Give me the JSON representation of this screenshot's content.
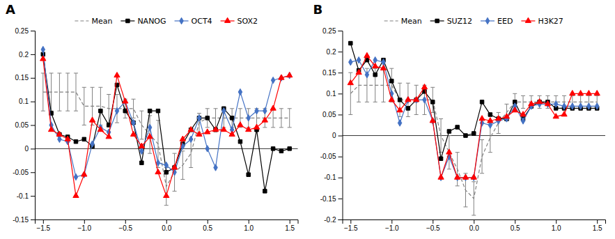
{
  "chart_data": [
    {
      "type": "line",
      "title": "A",
      "x": [
        -1.5,
        -1.4,
        -1.3,
        -1.2,
        -1.1,
        -1.0,
        -0.9,
        -0.8,
        -0.7,
        -0.6,
        -0.5,
        -0.4,
        -0.3,
        -0.2,
        -0.1,
        0.0,
        0.1,
        0.2,
        0.3,
        0.4,
        0.5,
        0.6,
        0.7,
        0.8,
        0.9,
        1.0,
        1.1,
        1.2,
        1.3,
        1.4,
        1.5
      ],
      "series": [
        {
          "name": "Mean",
          "color": "#808080",
          "line_style": "dashed",
          "marker": "none",
          "values": [
            0.12,
            0.12,
            0.12,
            0.12,
            0.12,
            0.09,
            0.09,
            0.09,
            0.085,
            0.085,
            0.085,
            0.085,
            0.05,
            0.03,
            0.01,
            -0.08,
            -0.05,
            -0.035,
            -0.01,
            0.055,
            0.065,
            0.065,
            0.065,
            0.065,
            0.065,
            0.065,
            0.065,
            0.065,
            0.065,
            0.065,
            0.065
          ],
          "errors": [
            0.04,
            0.04,
            0.04,
            0.04,
            0.04,
            0.04,
            0.04,
            0.04,
            0.03,
            0.03,
            0.02,
            0.02,
            0.03,
            0.04,
            0.05,
            0.04,
            0.04,
            0.03,
            0.03,
            0.02,
            0.02,
            0.02,
            0.02,
            0.02,
            0.02,
            0.02,
            0.02,
            0.02,
            0.02,
            0.02,
            0.02
          ]
        },
        {
          "name": "NANOG",
          "color": "#000000",
          "line_style": "solid",
          "marker": "square",
          "values": [
            0.2,
            0.075,
            0.03,
            0.025,
            0.015,
            0.02,
            0.005,
            0.08,
            0.05,
            0.135,
            0.08,
            0.055,
            -0.03,
            0.08,
            0.08,
            -0.05,
            -0.04,
            0.01,
            0.04,
            0.065,
            0.065,
            0.04,
            0.085,
            0.065,
            0.015,
            -0.055,
            0.04,
            -0.09,
            0.0,
            -0.005,
            0.0
          ]
        },
        {
          "name": "OCT4",
          "color": "#4472C4",
          "line_style": "solid",
          "marker": "diamond",
          "values": [
            0.21,
            0.05,
            0.02,
            0.015,
            -0.06,
            -0.055,
            0.01,
            0.045,
            0.035,
            0.08,
            0.1,
            0.055,
            -0.005,
            0.045,
            -0.03,
            -0.035,
            -0.05,
            0.005,
            0.02,
            0.065,
            0.0,
            -0.04,
            0.08,
            0.04,
            0.12,
            0.065,
            0.08,
            0.08,
            0.145,
            0.15,
            0.155
          ]
        },
        {
          "name": "SOX2",
          "color": "#FF0000",
          "line_style": "solid",
          "marker": "triangle",
          "values": [
            0.19,
            0.04,
            0.03,
            0.02,
            -0.1,
            -0.055,
            0.06,
            0.04,
            0.025,
            0.155,
            0.1,
            0.03,
            0.005,
            0.025,
            -0.05,
            -0.1,
            -0.04,
            0.02,
            0.04,
            0.03,
            0.035,
            0.04,
            0.04,
            0.03,
            0.05,
            0.04,
            0.045,
            0.06,
            0.085,
            0.15,
            0.155
          ]
        }
      ],
      "xlim": [
        -1.6,
        1.6
      ],
      "ylim": [
        -0.15,
        0.25
      ],
      "xticks": [
        {
          "value": -1.5,
          "label": "−1.5"
        },
        {
          "value": -1.0,
          "label": "−1.0"
        },
        {
          "value": -0.5,
          "label": "−0.5"
        },
        {
          "value": 0.0,
          "label": "0.0"
        },
        {
          "value": 0.5,
          "label": "0.5"
        },
        {
          "value": 1.0,
          "label": "1.0"
        },
        {
          "value": 1.5,
          "label": "1.5"
        }
      ],
      "yticks": [
        -0.15,
        -0.1,
        -0.05,
        0,
        0.05,
        0.1,
        0.15,
        0.2,
        0.25
      ],
      "legend": "top"
    },
    {
      "type": "line",
      "title": "B",
      "x": [
        -1.5,
        -1.4,
        -1.3,
        -1.2,
        -1.1,
        -1.0,
        -0.9,
        -0.8,
        -0.7,
        -0.6,
        -0.5,
        -0.4,
        -0.3,
        -0.2,
        -0.1,
        0.0,
        0.1,
        0.2,
        0.3,
        0.4,
        0.5,
        0.6,
        0.7,
        0.8,
        0.9,
        1.0,
        1.1,
        1.2,
        1.3,
        1.4,
        1.5
      ],
      "series": [
        {
          "name": "Mean",
          "color": "#808080",
          "line_style": "dashed",
          "marker": "none",
          "values": [
            0.1,
            0.12,
            0.12,
            0.12,
            0.12,
            0.12,
            0.085,
            0.085,
            0.085,
            0.085,
            0.085,
            0.0,
            -0.04,
            -0.08,
            -0.13,
            -0.15,
            -0.05,
            -0.005,
            0.03,
            0.055,
            0.08,
            0.08,
            0.08,
            0.08,
            0.08,
            0.08,
            0.08,
            0.08,
            0.08,
            0.08,
            0.08
          ],
          "errors": [
            0.05,
            0.04,
            0.04,
            0.04,
            0.04,
            0.04,
            0.04,
            0.04,
            0.035,
            0.035,
            0.03,
            0.04,
            0.04,
            0.04,
            0.04,
            0.04,
            0.04,
            0.035,
            0.025,
            0.02,
            0.02,
            0.015,
            0.015,
            0.015,
            0.015,
            0.015,
            0.015,
            0.015,
            0.015,
            0.015,
            0.015
          ]
        },
        {
          "name": "SUZ12",
          "color": "#000000",
          "line_style": "solid",
          "marker": "square",
          "values": [
            0.22,
            0.155,
            0.18,
            0.145,
            0.18,
            0.13,
            0.085,
            0.065,
            0.085,
            0.105,
            0.08,
            -0.055,
            0.01,
            0.02,
            0.0,
            0.005,
            0.08,
            0.05,
            0.04,
            0.04,
            0.08,
            0.04,
            0.07,
            0.08,
            0.08,
            0.065,
            0.065,
            0.065,
            0.065,
            0.065,
            0.065
          ]
        },
        {
          "name": "EED",
          "color": "#4472C4",
          "line_style": "solid",
          "marker": "diamond",
          "values": [
            0.175,
            0.18,
            0.145,
            0.18,
            0.175,
            0.1,
            0.03,
            0.085,
            0.085,
            0.085,
            0.035,
            -0.1,
            -0.05,
            -0.1,
            -0.1,
            -0.1,
            0.03,
            0.025,
            0.035,
            0.04,
            0.07,
            0.035,
            0.07,
            0.075,
            0.075,
            0.075,
            0.07,
            0.07,
            0.07,
            0.07,
            0.07
          ]
        },
        {
          "name": "H3K27",
          "color": "#FF0000",
          "line_style": "solid",
          "marker": "triangle",
          "values": [
            0.125,
            0.15,
            0.19,
            0.165,
            0.16,
            0.085,
            0.06,
            0.085,
            0.085,
            0.115,
            0.035,
            -0.1,
            -0.04,
            -0.1,
            -0.1,
            -0.1,
            0.04,
            0.035,
            0.04,
            0.045,
            0.06,
            0.05,
            0.075,
            0.08,
            0.075,
            0.045,
            0.05,
            0.1,
            0.1,
            0.1,
            0.1
          ]
        }
      ],
      "xlim": [
        -1.6,
        1.6
      ],
      "ylim": [
        -0.2,
        0.25
      ],
      "xticks": [
        {
          "value": -1.5,
          "label": "−1.5"
        },
        {
          "value": -1.0,
          "label": "−1.0"
        },
        {
          "value": -0.5,
          "label": "−0.5"
        },
        {
          "value": 0.0,
          "label": "0.0"
        },
        {
          "value": 0.5,
          "label": "0.5"
        },
        {
          "value": 1.0,
          "label": "1.0"
        },
        {
          "value": 1.5,
          "label": "1.5"
        }
      ],
      "yticks": [
        -0.2,
        -0.15,
        -0.1,
        -0.05,
        0,
        0.05,
        0.1,
        0.15,
        0.2,
        0.25
      ],
      "legend": "top"
    }
  ]
}
